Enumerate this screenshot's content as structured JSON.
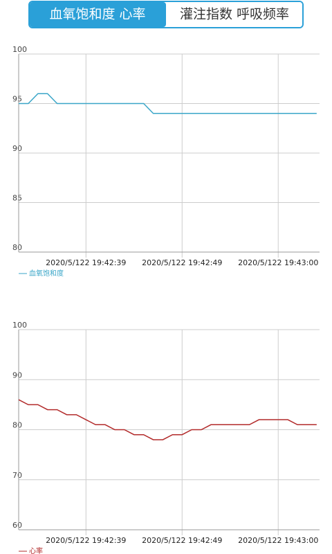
{
  "tabs": [
    {
      "label": "血氧饱和度 心率",
      "selected": true
    },
    {
      "label": "灌注指数 呼吸频率",
      "selected": false
    }
  ],
  "chart_data": [
    {
      "type": "line",
      "x": [
        0,
        1,
        2,
        3,
        4,
        5,
        6,
        7,
        8,
        9,
        10,
        11,
        12,
        13,
        14,
        15,
        16,
        17,
        18,
        19,
        20,
        21,
        22,
        23,
        24,
        25,
        26,
        27,
        28,
        29,
        30,
        31
      ],
      "xlim": [
        0,
        31.3
      ],
      "xticks": [
        {
          "value": 7,
          "label": "2020/5/122 19:42:39"
        },
        {
          "value": 17,
          "label": "2020/5/122 19:42:49"
        },
        {
          "value": 27,
          "label": "2020/5/122 19:43:00"
        }
      ],
      "ylim": [
        80,
        100
      ],
      "yticks": [
        80,
        85,
        90,
        95,
        100
      ],
      "grid": true,
      "legend": "bottom-left",
      "series": [
        {
          "name": "血氧饱和度",
          "color": "#3aa6c8",
          "values": [
            95,
            95,
            96,
            96,
            95,
            95,
            95,
            95,
            95,
            95,
            95,
            95,
            95,
            95,
            94,
            94,
            94,
            94,
            94,
            94,
            94,
            94,
            94,
            94,
            94,
            94,
            94,
            94,
            94,
            94,
            94,
            94
          ]
        }
      ]
    },
    {
      "type": "line",
      "x": [
        0,
        1,
        2,
        3,
        4,
        5,
        6,
        7,
        8,
        9,
        10,
        11,
        12,
        13,
        14,
        15,
        16,
        17,
        18,
        19,
        20,
        21,
        22,
        23,
        24,
        25,
        26,
        27,
        28,
        29,
        30,
        31
      ],
      "xlim": [
        0,
        31.3
      ],
      "xticks": [
        {
          "value": 7,
          "label": "2020/5/122 19:42:39"
        },
        {
          "value": 17,
          "label": "2020/5/122 19:42:49"
        },
        {
          "value": 27,
          "label": "2020/5/122 19:43:00"
        }
      ],
      "ylim": [
        60,
        100
      ],
      "yticks": [
        60,
        70,
        80,
        90,
        100
      ],
      "grid": true,
      "legend": "bottom-left",
      "series": [
        {
          "name": "心率",
          "color": "#b22a2a",
          "values": [
            86,
            85,
            85,
            84,
            84,
            83,
            83,
            82,
            81,
            81,
            80,
            80,
            79,
            79,
            78,
            78,
            79,
            79,
            80,
            80,
            81,
            81,
            81,
            81,
            81,
            82,
            82,
            82,
            82,
            81,
            81,
            81
          ]
        }
      ]
    }
  ]
}
